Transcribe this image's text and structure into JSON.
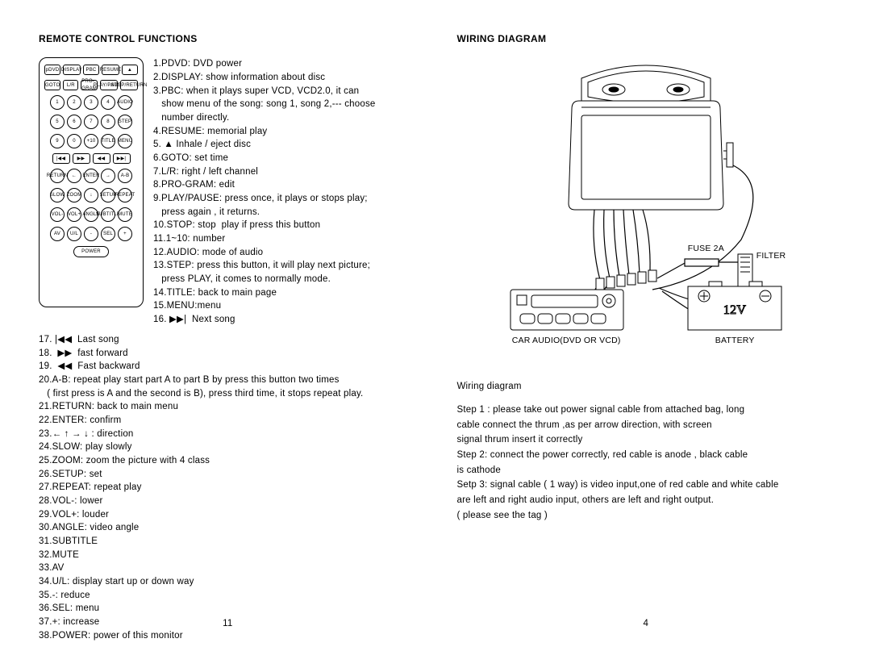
{
  "left": {
    "heading": "REMOTE CONTROL FUNCTIONS",
    "remote_rows": [
      [
        "pDVD",
        "DISPLAY",
        "PBC",
        "RESUME",
        "▲"
      ],
      [
        "GOTO",
        "L/R",
        "PRO-GRAM",
        "PLAY/PAUSE",
        "STOP/RETURN"
      ],
      [
        "1",
        "2",
        "3",
        "4",
        "AUDIO"
      ],
      [
        "5",
        "6",
        "7",
        "8",
        "STEP"
      ],
      [
        "9",
        "0",
        "+10",
        "TITLE",
        "MENU"
      ],
      [
        "|◀◀",
        "▶▶",
        "◀◀",
        "▶▶|"
      ],
      [
        "RETURN",
        "←",
        "ENTER",
        "→",
        "A-B"
      ],
      [
        "SLOW",
        "ZOOM",
        "↓",
        "SETUP",
        "REPEAT"
      ],
      [
        "VOL-",
        "VOL+",
        "ANGLE",
        "SUBTITLE",
        "MUTE"
      ],
      [
        "AV",
        "U/L",
        "-",
        "SEL",
        "+"
      ]
    ],
    "power": "POWER",
    "items_top": "1.PDVD: DVD power\n2.DISPLAY: show information about disc\n3.PBC: when it plays super VCD, VCD2.0, it can\n   show menu of the song: song 1, song 2,--- choose\n   number directly.\n4.RESUME: memorial play\n5. ▲ Inhale / eject disc\n6.GOTO: set time\n7.L/R: right / left channel\n8.PRO-GRAM: edit\n9.PLAY/PAUSE: press once, it plays or stops play;\n   press again , it returns.\n10.STOP: stop  play if press this button\n11.1~10: number\n12.AUDIO: mode of audio\n13.STEP: press this button, it will play next picture;\n   press PLAY, it comes to normally mode.\n14.TITLE: back to main page\n15.MENU:menu\n16. ▶▶|  Next song",
    "items_bottom": "17. |◀◀  Last song\n18.  ▶▶  fast forward\n19.  ◀◀  Fast backward\n20.A-B: repeat play start part A to part B by press this button two times\n   ( first press is A and the second is B), press third time, it stops repeat play.\n21.RETURN: back to main menu\n22.ENTER: confirm\n23.← ↑ → ↓ : direction\n24.SLOW: play slowly\n25.ZOOM: zoom the picture with 4 class\n26.SETUP: set\n27.REPEAT: repeat play\n28.VOL-: lower\n29.VOL+: louder\n30.ANGLE: video angle\n31.SUBTITLE\n32.MUTE\n33.AV\n34.U/L: display start up or down way\n35.-: reduce\n36.SEL: menu\n37.+: increase\n38.POWER: power of this monitor",
    "page": "11"
  },
  "right": {
    "heading": "WIRING DIAGRAM",
    "labels": {
      "fuse": "FUSE  2A",
      "filter": "FILTER",
      "car_audio": "CAR AUDIO(DVD OR VCD)",
      "battery": "BATTERY",
      "batt_v": "12V"
    },
    "steps_title": "Wiring diagram",
    "steps": [
      "Step 1 : please take out power signal cable from attached bag, long",
      "              cable connect the thrum ,as per arrow direction, with screen",
      "              signal thrum insert it correctly",
      "Step 2: connect the power correctly, red cable is anode , black cable",
      "              is cathode",
      "Setp 3: signal cable ( 1 way) is video input,one of red cable and white cable",
      "              are left and right audio input, others are left and right output.",
      "              ( please see the tag )"
    ],
    "page": "4"
  }
}
